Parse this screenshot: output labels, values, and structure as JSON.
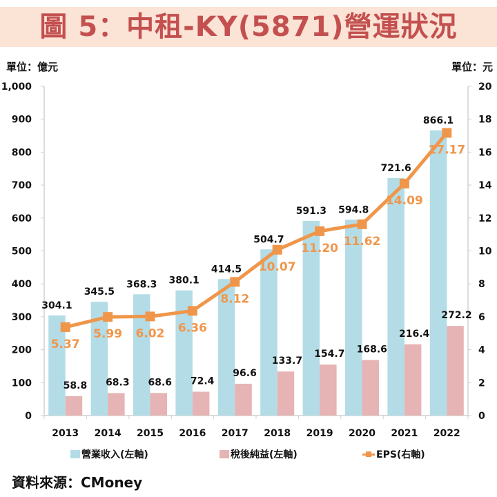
{
  "title": "圖 5：中租-KY(5871)營運狀況",
  "units": {
    "left": "單位：億元",
    "right": "單位：元"
  },
  "source": "資料來源：CMoney",
  "colors": {
    "revenue": "#B4DCE6",
    "net_income": "#E6B4B4",
    "eps": "#F0964B",
    "title_bg": "#FBE3D6",
    "title_text": "#C3504F"
  },
  "chart_data": {
    "type": "bar",
    "title": "圖 5：中租-KY(5871)營運狀況",
    "categories": [
      "2013",
      "2014",
      "2015",
      "2016",
      "2017",
      "2018",
      "2019",
      "2020",
      "2021",
      "2022"
    ],
    "series": [
      {
        "name": "營業收入(左軸)",
        "type": "bar",
        "axis": "left",
        "values": [
          304.1,
          345.5,
          368.3,
          380.1,
          414.5,
          504.7,
          591.3,
          594.8,
          721.6,
          866.1
        ],
        "labels": [
          "304.1",
          "345.5",
          "368.3",
          "380.1",
          "414.5",
          "504.7",
          "591.3",
          "594.8",
          "721.6",
          "866.1"
        ]
      },
      {
        "name": "稅後純益(左軸)",
        "type": "bar",
        "axis": "left",
        "values": [
          58.8,
          68.3,
          68.6,
          72.4,
          96.6,
          133.7,
          154.7,
          168.6,
          216.4,
          272.2
        ],
        "labels": [
          "58.8",
          "68.3",
          "68.6",
          "72.4",
          "96.6",
          "133.7",
          "154.7",
          "168.6",
          "216.4",
          "272.2"
        ]
      },
      {
        "name": "EPS(右軸)",
        "type": "line",
        "axis": "right",
        "values": [
          5.37,
          5.99,
          6.02,
          6.36,
          8.12,
          10.07,
          11.2,
          11.62,
          14.09,
          17.17
        ],
        "labels": [
          "5.37",
          "5.99",
          "6.02",
          "6.36",
          "8.12",
          "10.07",
          "11.20",
          "11.62",
          "14.09",
          "17.17"
        ]
      }
    ],
    "y_left": {
      "label": "單位：億元",
      "lim": [
        0,
        1000
      ],
      "ticks": [
        0,
        100,
        200,
        300,
        400,
        500,
        600,
        700,
        800,
        900,
        1000
      ],
      "tick_labels": [
        "0",
        "100",
        "200",
        "300",
        "400",
        "500",
        "600",
        "700",
        "800",
        "900",
        "1,000"
      ]
    },
    "y_right": {
      "label": "單位：元",
      "lim": [
        0,
        20
      ],
      "ticks": [
        0,
        2,
        4,
        6,
        8,
        10,
        12,
        14,
        16,
        18,
        20
      ],
      "tick_labels": [
        "0",
        "2",
        "4",
        "6",
        "8",
        "10",
        "12",
        "14",
        "16",
        "18",
        "20"
      ]
    },
    "grid": false,
    "legend": "bottom"
  }
}
